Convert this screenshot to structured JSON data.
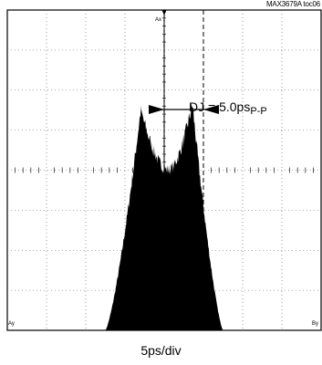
{
  "header": {
    "ref_label": "MAX3679A toc06"
  },
  "chart_data": {
    "type": "histogram",
    "title": "",
    "xlabel": "5ps/div",
    "ylabel": "",
    "grid": true,
    "divisions": {
      "x": 8,
      "y": 8
    },
    "x_scale": "5 ps per division",
    "xlim": [
      -20,
      20
    ],
    "annotation": {
      "main": "DJ = 5.0ps",
      "subscript": "P-P",
      "dj_ps": 5.0
    },
    "cursors": [
      {
        "name": "cursor-a",
        "marker": "Ax",
        "x_ps": 0.0,
        "style": "solid"
      },
      {
        "name": "cursor-b",
        "x_ps": 5.0,
        "style": "dashed"
      }
    ],
    "center_marker_x_ps": 0.0,
    "corner_markers": {
      "left": "Ay",
      "right": "By"
    },
    "distribution": {
      "shape": "dual-dirac",
      "peaks": [
        {
          "x_ps": -3.0,
          "rel_height": 0.71
        },
        {
          "x_ps": 3.6,
          "rel_height": 0.73
        }
      ],
      "valley": {
        "x_ps": 0.5,
        "rel_height": 0.52
      },
      "extent_ps": [
        -7.5,
        7.5
      ]
    }
  }
}
